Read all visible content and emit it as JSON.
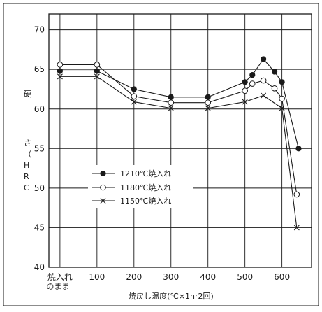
{
  "chart_data": {
    "type": "line",
    "ylabel": "硬さ（HRC）",
    "xlabel": "焼戻し温度(℃×1hr2回)",
    "ylim": [
      40,
      72
    ],
    "yticks": [
      40,
      45,
      50,
      55,
      60,
      65,
      70
    ],
    "xticks": [
      {
        "value": 0,
        "label": "焼入れ",
        "label2": "のまま"
      },
      {
        "value": 100,
        "label": "100"
      },
      {
        "value": 200,
        "label": "200"
      },
      {
        "value": 300,
        "label": "300"
      },
      {
        "value": 400,
        "label": "400"
      },
      {
        "value": 500,
        "label": "500"
      },
      {
        "value": 600,
        "label": "600"
      }
    ],
    "grid": true,
    "legend_position": "left-center",
    "series": [
      {
        "name": "1210℃焼入れ",
        "marker": "filled-circle",
        "x": [
          0,
          100,
          200,
          300,
          400,
          500,
          520,
          550,
          580,
          600,
          645
        ],
        "y": [
          64.8,
          64.8,
          62.5,
          61.5,
          61.5,
          63.4,
          64.3,
          66.3,
          64.7,
          63.4,
          55.0
        ]
      },
      {
        "name": "1180℃焼入れ",
        "marker": "open-circle",
        "x": [
          0,
          100,
          200,
          300,
          400,
          500,
          520,
          550,
          580,
          600,
          640
        ],
        "y": [
          65.6,
          65.6,
          61.6,
          60.8,
          60.8,
          62.3,
          63.2,
          63.6,
          62.6,
          61.3,
          49.2
        ]
      },
      {
        "name": "1150℃焼入れ",
        "marker": "cross",
        "x": [
          0,
          100,
          200,
          300,
          400,
          500,
          550,
          600,
          640
        ],
        "y": [
          64.1,
          64.1,
          60.9,
          60.1,
          60.1,
          60.9,
          61.7,
          60.1,
          45.0
        ]
      }
    ],
    "colors": {
      "background": "#ffffff",
      "frame": "#1a1a1a",
      "line": "#1a1a1a",
      "grid": "#1a1a1a"
    }
  }
}
